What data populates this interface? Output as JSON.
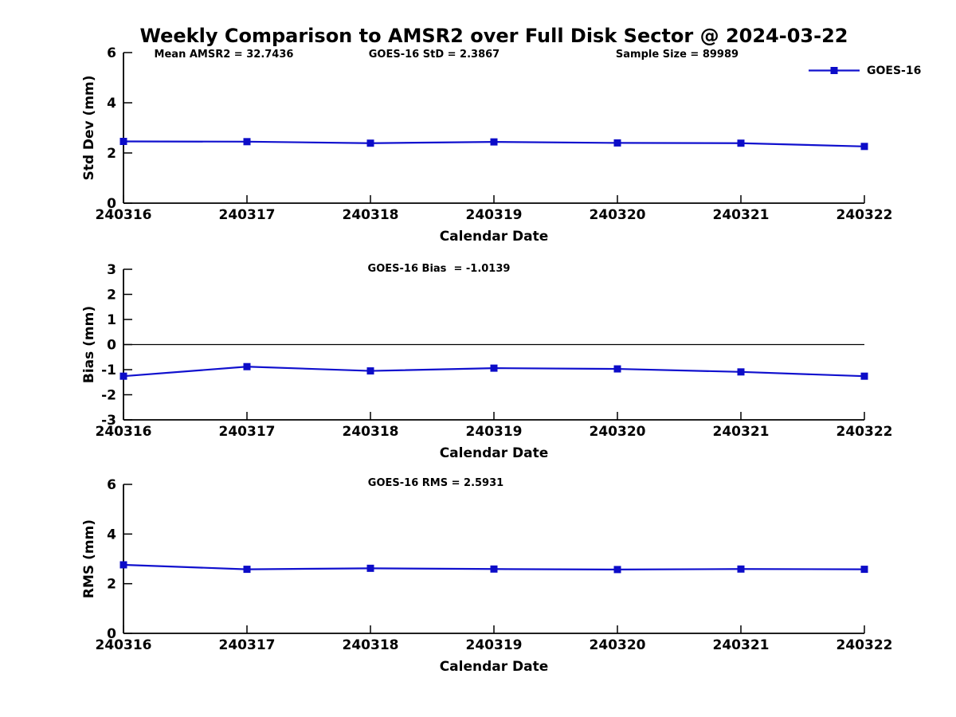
{
  "title": "Weekly Comparison to AMSR2 over Full Disk Sector @ 2024-03-22",
  "annotations": {
    "mean_amsr2": "Mean AMSR2 = 32.7436",
    "goes16_std": "GOES-16 StD = 2.3867",
    "sample_size": "Sample Size = 89989",
    "goes16_bias": "GOES-16 Bias  = -1.0139",
    "goes16_rms": "GOES-16 RMS = 2.5931"
  },
  "legend": {
    "label": "GOES-16"
  },
  "colors": {
    "line": "#1010CE",
    "marker": "#0C0CC8",
    "axis": "#000000"
  },
  "chart_data": [
    {
      "id": "std-dev",
      "type": "line",
      "title": "",
      "xlabel": "Calendar Date",
      "ylabel": "Std Dev (mm)",
      "categories": [
        "240316",
        "240317",
        "240318",
        "240319",
        "240320",
        "240321",
        "240322"
      ],
      "series": [
        {
          "name": "GOES-16",
          "values": [
            2.46,
            2.45,
            2.39,
            2.44,
            2.4,
            2.39,
            2.26
          ]
        }
      ],
      "ylim": [
        0,
        6
      ],
      "yticks": [
        0,
        2,
        4,
        6
      ],
      "grid": false,
      "zeroline": false,
      "legend_position": "top-right-outside",
      "marker": "square"
    },
    {
      "id": "bias",
      "type": "line",
      "title": "",
      "xlabel": "Calendar Date",
      "ylabel": "Bias (mm)",
      "categories": [
        "240316",
        "240317",
        "240318",
        "240319",
        "240320",
        "240321",
        "240322"
      ],
      "series": [
        {
          "name": "GOES-16",
          "values": [
            -1.26,
            -0.88,
            -1.05,
            -0.94,
            -0.97,
            -1.09,
            -1.26
          ]
        }
      ],
      "ylim": [
        -3,
        3
      ],
      "yticks": [
        -3,
        -2,
        -1,
        0,
        1,
        2,
        3
      ],
      "grid": false,
      "zeroline": true,
      "marker": "square"
    },
    {
      "id": "rms",
      "type": "line",
      "title": "",
      "xlabel": "Calendar Date",
      "ylabel": "RMS (mm)",
      "categories": [
        "240316",
        "240317",
        "240318",
        "240319",
        "240320",
        "240321",
        "240322"
      ],
      "series": [
        {
          "name": "GOES-16",
          "values": [
            2.76,
            2.58,
            2.62,
            2.59,
            2.57,
            2.59,
            2.58
          ]
        }
      ],
      "ylim": [
        0,
        6
      ],
      "yticks": [
        0,
        2,
        4,
        6
      ],
      "grid": false,
      "zeroline": false,
      "marker": "square"
    }
  ]
}
